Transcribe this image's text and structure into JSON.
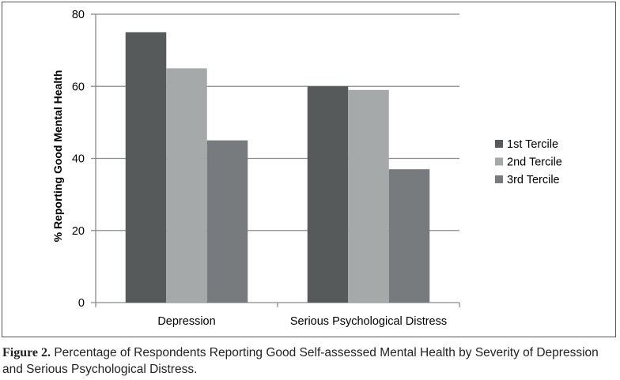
{
  "chart_data": {
    "type": "bar",
    "categories": [
      "Depression",
      "Serious Psychological Distress"
    ],
    "series": [
      {
        "name": "1st Tercile",
        "values": [
          75,
          60
        ]
      },
      {
        "name": "2nd Tercile",
        "values": [
          65,
          59
        ]
      },
      {
        "name": "3rd Tercile",
        "values": [
          45,
          37
        ]
      }
    ],
    "title": "",
    "xlabel": "",
    "ylabel": "% Reporting Good Mental Health",
    "ylim": [
      0,
      80
    ],
    "yticks": [
      0,
      20,
      40,
      60,
      80
    ],
    "grid": true,
    "legend_position": "right"
  },
  "colors": {
    "series": [
      "#575a5b",
      "#a6a9a9",
      "#777b7d"
    ],
    "grid": "#8a8a8a",
    "axis": "#8a8a8a",
    "text": "#000000"
  },
  "caption": {
    "label": "Figure 2.",
    "text": "Percentage of Respondents Reporting Good Self-assessed Mental Health by Severity of Depression and Serious Psychological Distress."
  }
}
